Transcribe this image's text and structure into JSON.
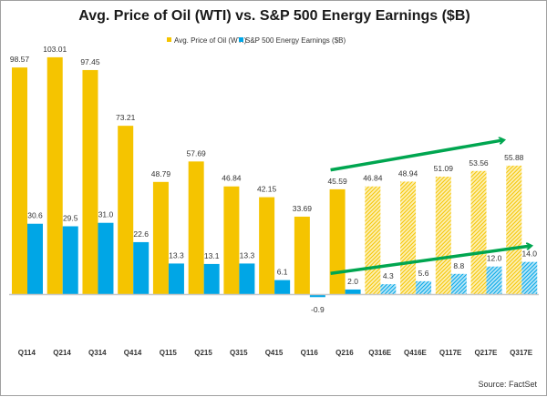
{
  "chart_data": {
    "type": "bar",
    "title": "Avg. Price of Oil (WTI) vs. S&P 500 Energy Earnings ($B)",
    "xlabel": "",
    "ylabel": "",
    "categories": [
      "Q114",
      "Q214",
      "Q314",
      "Q414",
      "Q115",
      "Q215",
      "Q315",
      "Q415",
      "Q116",
      "Q216",
      "Q316E",
      "Q416E",
      "Q117E",
      "Q217E",
      "Q317E"
    ],
    "estimate_start_index": 10,
    "series": [
      {
        "name": "Avg. Price of Oil (WTI)",
        "color": "#F5C400",
        "values": [
          98.57,
          103.01,
          97.45,
          73.21,
          48.79,
          57.69,
          46.84,
          42.15,
          33.69,
          45.59,
          46.84,
          48.94,
          51.09,
          53.56,
          55.88
        ],
        "labels": [
          "98.57",
          "103.01",
          "97.45",
          "73.21",
          "48.79",
          "57.69",
          "46.84",
          "42.15",
          "33.69",
          "45.59",
          "46.84",
          "48.94",
          "51.09",
          "53.56",
          "55.88"
        ]
      },
      {
        "name": "S&P 500 Energy Earnings ($B)",
        "color": "#00A6E6",
        "values": [
          30.6,
          29.5,
          31.0,
          22.6,
          13.3,
          13.1,
          13.3,
          6.1,
          -0.9,
          2.0,
          4.3,
          5.6,
          8.8,
          12.0,
          14.0
        ],
        "labels": [
          "30.6",
          "29.5",
          "31.0",
          "22.6",
          "13.3",
          "13.1",
          "13.3",
          "6.1",
          "-0.9",
          "2.0",
          "4.3",
          "5.6",
          "8.8",
          "12.0",
          "14.0"
        ]
      }
    ],
    "ylim": [
      -5,
      105
    ],
    "grid": false,
    "legend": {
      "placement": "top-center",
      "entries": [
        "Avg. Price of Oil (WTI)",
        "S&P 500 Energy Earnings ($B)"
      ]
    },
    "annotations": [
      {
        "type": "arrow",
        "color": "#00A650",
        "description": "upward trend arrow over oil price estimates",
        "from_category": "Q216",
        "to_category": "Q317E",
        "from_value": 54,
        "to_value": 67
      },
      {
        "type": "arrow",
        "color": "#00A650",
        "description": "upward trend arrow over earnings estimates",
        "from_category": "Q216",
        "to_category": "Q317E",
        "from_value": 9,
        "to_value": 21
      }
    ],
    "source": "Source: FactSet"
  }
}
